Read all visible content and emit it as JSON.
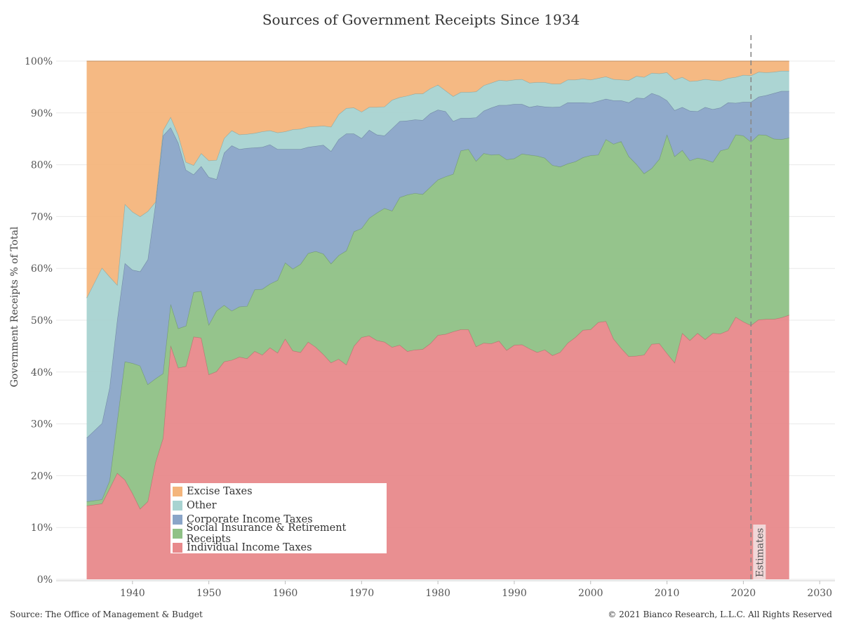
{
  "chart_data": {
    "type": "area",
    "title": "Sources of Government Receipts Since 1934",
    "ylabel": "Government Receipts % of Total",
    "xlabel": "",
    "xlim": [
      1930,
      2032
    ],
    "ylim": [
      0,
      100
    ],
    "x_ticks": [
      "1940",
      "1950",
      "1960",
      "1970",
      "1980",
      "1990",
      "2000",
      "2010",
      "2020",
      "2030"
    ],
    "y_ticks": [
      "0%",
      "10%",
      "20%",
      "30%",
      "40%",
      "50%",
      "60%",
      "70%",
      "80%",
      "90%",
      "100%"
    ],
    "grid": "horizontal",
    "legend_position": "bottom-left",
    "stacked": true,
    "annotation": {
      "label": "Estimates",
      "x": 2021
    },
    "x": [
      1934,
      1936,
      1937,
      1938,
      1939,
      1940,
      1941,
      1942,
      1943,
      1944,
      1945,
      1946,
      1947,
      1948,
      1949,
      1950,
      1951,
      1952,
      1953,
      1954,
      1955,
      1956,
      1957,
      1958,
      1959,
      1960,
      1961,
      1962,
      1963,
      1964,
      1965,
      1966,
      1967,
      1968,
      1969,
      1970,
      1971,
      1972,
      1973,
      1974,
      1975,
      1976,
      1977,
      1978,
      1979,
      1980,
      1981,
      1982,
      1983,
      1984,
      1985,
      1986,
      1987,
      1988,
      1989,
      1990,
      1991,
      1992,
      1993,
      1994,
      1995,
      1996,
      1997,
      1998,
      1999,
      2000,
      2001,
      2002,
      2003,
      2004,
      2005,
      2006,
      2007,
      2008,
      2009,
      2010,
      2011,
      2012,
      2013,
      2014,
      2015,
      2016,
      2017,
      2018,
      2019,
      2020,
      2021,
      2022,
      2023,
      2024,
      2025,
      2026
    ],
    "series": [
      {
        "name": "Individual Income Taxes",
        "color": "#e8898b",
        "values": [
          14.2,
          14.6,
          17.5,
          20.5,
          19.2,
          16.6,
          13.6,
          15.0,
          22.5,
          27.2,
          45.1,
          40.8,
          41.1,
          46.8,
          46.6,
          39.5,
          40.1,
          42.0,
          42.3,
          42.9,
          42.6,
          44.0,
          43.3,
          44.7,
          43.7,
          46.4,
          44.1,
          43.8,
          45.8,
          44.8,
          43.4,
          41.8,
          42.5,
          41.4,
          45.0,
          46.7,
          47.0,
          46.1,
          45.8,
          44.8,
          45.2,
          44.0,
          44.3,
          44.4,
          45.5,
          47.1,
          47.3,
          47.8,
          48.2,
          48.2,
          44.9,
          45.6,
          45.5,
          46.0,
          44.2,
          45.2,
          45.3,
          44.5,
          43.8,
          44.3,
          43.2,
          43.8,
          45.6,
          46.7,
          48.1,
          48.2,
          49.6,
          49.8,
          46.4,
          44.6,
          43.0,
          43.1,
          43.3,
          45.4,
          45.5,
          43.6,
          41.8,
          47.5,
          46.1,
          47.5,
          46.3,
          47.5,
          47.4,
          48.0,
          50.6,
          49.7,
          49.0,
          50.1,
          50.2,
          50.2,
          50.5,
          51.0
        ]
      },
      {
        "name": "Social Insurance & Retirement Receipts",
        "color": "#8fc186",
        "values": [
          0.8,
          0.8,
          1.5,
          10.0,
          22.8,
          25.1,
          27.6,
          22.6,
          16.2,
          12.5,
          8.0,
          7.6,
          7.8,
          8.6,
          9.0,
          9.6,
          11.7,
          10.9,
          9.5,
          9.7,
          10.1,
          11.9,
          12.7,
          12.3,
          14.0,
          14.7,
          15.8,
          17.0,
          17.1,
          18.5,
          19.4,
          19.1,
          20.0,
          22.0,
          22.1,
          21.0,
          22.7,
          24.6,
          25.8,
          26.3,
          28.5,
          30.2,
          30.2,
          29.9,
          30.2,
          30.0,
          30.4,
          30.4,
          34.5,
          34.8,
          35.8,
          36.6,
          36.4,
          36.0,
          36.8,
          36.0,
          36.8,
          37.4,
          37.9,
          37.0,
          36.7,
          35.8,
          34.6,
          33.9,
          33.3,
          33.6,
          32.3,
          35.1,
          37.6,
          39.9,
          38.6,
          37.0,
          35.0,
          33.9,
          35.6,
          42.2,
          39.8,
          35.3,
          34.7,
          33.8,
          34.7,
          33.0,
          35.3,
          35.1,
          35.2,
          35.9,
          35.4,
          35.7,
          35.5,
          34.8,
          34.4,
          34.2
        ]
      },
      {
        "name": "Corporate Income Taxes",
        "color": "#8aa5c8",
        "values": [
          12.3,
          14.7,
          18.0,
          19.5,
          19.0,
          18.0,
          18.2,
          24.1,
          33.6,
          45.9,
          34.1,
          35.8,
          30.1,
          22.7,
          24.1,
          28.5,
          25.4,
          29.4,
          31.9,
          30.4,
          30.5,
          27.4,
          27.4,
          26.9,
          25.3,
          21.9,
          23.1,
          22.2,
          20.5,
          20.3,
          21.0,
          21.7,
          22.4,
          22.6,
          18.9,
          17.4,
          17.0,
          15.1,
          14.0,
          15.9,
          14.7,
          14.3,
          14.2,
          14.3,
          14.2,
          13.5,
          12.6,
          10.2,
          6.3,
          6.0,
          8.4,
          8.2,
          9.1,
          9.5,
          10.5,
          10.5,
          9.6,
          9.2,
          9.7,
          9.9,
          11.2,
          11.6,
          11.8,
          11.4,
          10.6,
          10.1,
          10.4,
          7.8,
          8.4,
          7.9,
          10.4,
          12.8,
          14.5,
          14.5,
          12.2,
          6.6,
          8.9,
          8.3,
          9.6,
          9.0,
          10.1,
          10.2,
          8.3,
          8.9,
          6.1,
          6.5,
          7.7,
          7.3,
          7.7,
          8.8,
          9.3,
          9.0
        ]
      },
      {
        "name": "Other",
        "color": "#a8d3d1",
        "values": [
          27.0,
          30.0,
          21.4,
          6.8,
          11.4,
          11.2,
          10.6,
          9.3,
          0.5,
          1.0,
          2.0,
          1.5,
          1.5,
          1.8,
          2.5,
          3.2,
          3.7,
          2.8,
          2.9,
          2.8,
          2.7,
          2.8,
          3.0,
          2.7,
          3.2,
          3.4,
          3.8,
          3.9,
          3.9,
          3.8,
          3.7,
          4.7,
          4.8,
          4.9,
          5.0,
          5.1,
          4.4,
          5.3,
          5.6,
          5.5,
          4.6,
          4.8,
          5.0,
          5.1,
          4.8,
          4.8,
          4.0,
          4.8,
          5.0,
          5.0,
          5.0,
          4.9,
          4.8,
          4.8,
          4.7,
          4.7,
          4.8,
          4.7,
          4.5,
          4.7,
          4.5,
          4.4,
          4.4,
          4.4,
          4.6,
          4.5,
          4.4,
          4.3,
          4.1,
          4.0,
          4.3,
          4.2,
          4.1,
          3.9,
          4.3,
          5.4,
          5.9,
          5.8,
          5.7,
          5.9,
          5.4,
          5.6,
          5.2,
          4.7,
          5.0,
          5.2,
          5.1,
          4.8,
          4.4,
          4.1,
          3.9,
          3.9
        ]
      },
      {
        "name": "Excise Taxes",
        "color": "#f4b57c",
        "values": [
          45.7,
          39.9,
          41.6,
          43.2,
          27.6,
          29.1,
          30.0,
          29.0,
          27.2,
          13.4,
          10.8,
          14.3,
          19.5,
          20.1,
          17.8,
          19.2,
          19.1,
          14.9,
          13.4,
          14.2,
          14.1,
          13.9,
          13.6,
          13.4,
          13.8,
          13.6,
          13.2,
          13.1,
          12.7,
          12.6,
          12.5,
          12.7,
          10.3,
          9.1,
          9.0,
          9.8,
          8.9,
          8.9,
          8.8,
          7.5,
          7.0,
          6.7,
          6.3,
          6.3,
          5.3,
          4.6,
          5.7,
          6.8,
          6.0,
          6.0,
          5.9,
          4.7,
          4.2,
          3.7,
          3.8,
          3.6,
          3.5,
          4.2,
          4.1,
          4.1,
          4.4,
          4.4,
          3.6,
          3.6,
          3.4,
          3.6,
          3.3,
          3.0,
          3.5,
          3.6,
          3.7,
          2.9,
          3.1,
          2.3,
          2.4,
          2.2,
          3.6,
          3.1,
          3.9,
          3.8,
          3.5,
          3.7,
          3.8,
          3.3,
          3.1,
          2.7,
          2.8,
          2.1,
          2.2,
          2.1,
          1.9,
          1.9
        ]
      }
    ]
  },
  "footer": {
    "source": "Source: The Office of Management & Budget",
    "copyright": "© 2021 Bianco Research, L.L.C. All Rights Reserved"
  }
}
